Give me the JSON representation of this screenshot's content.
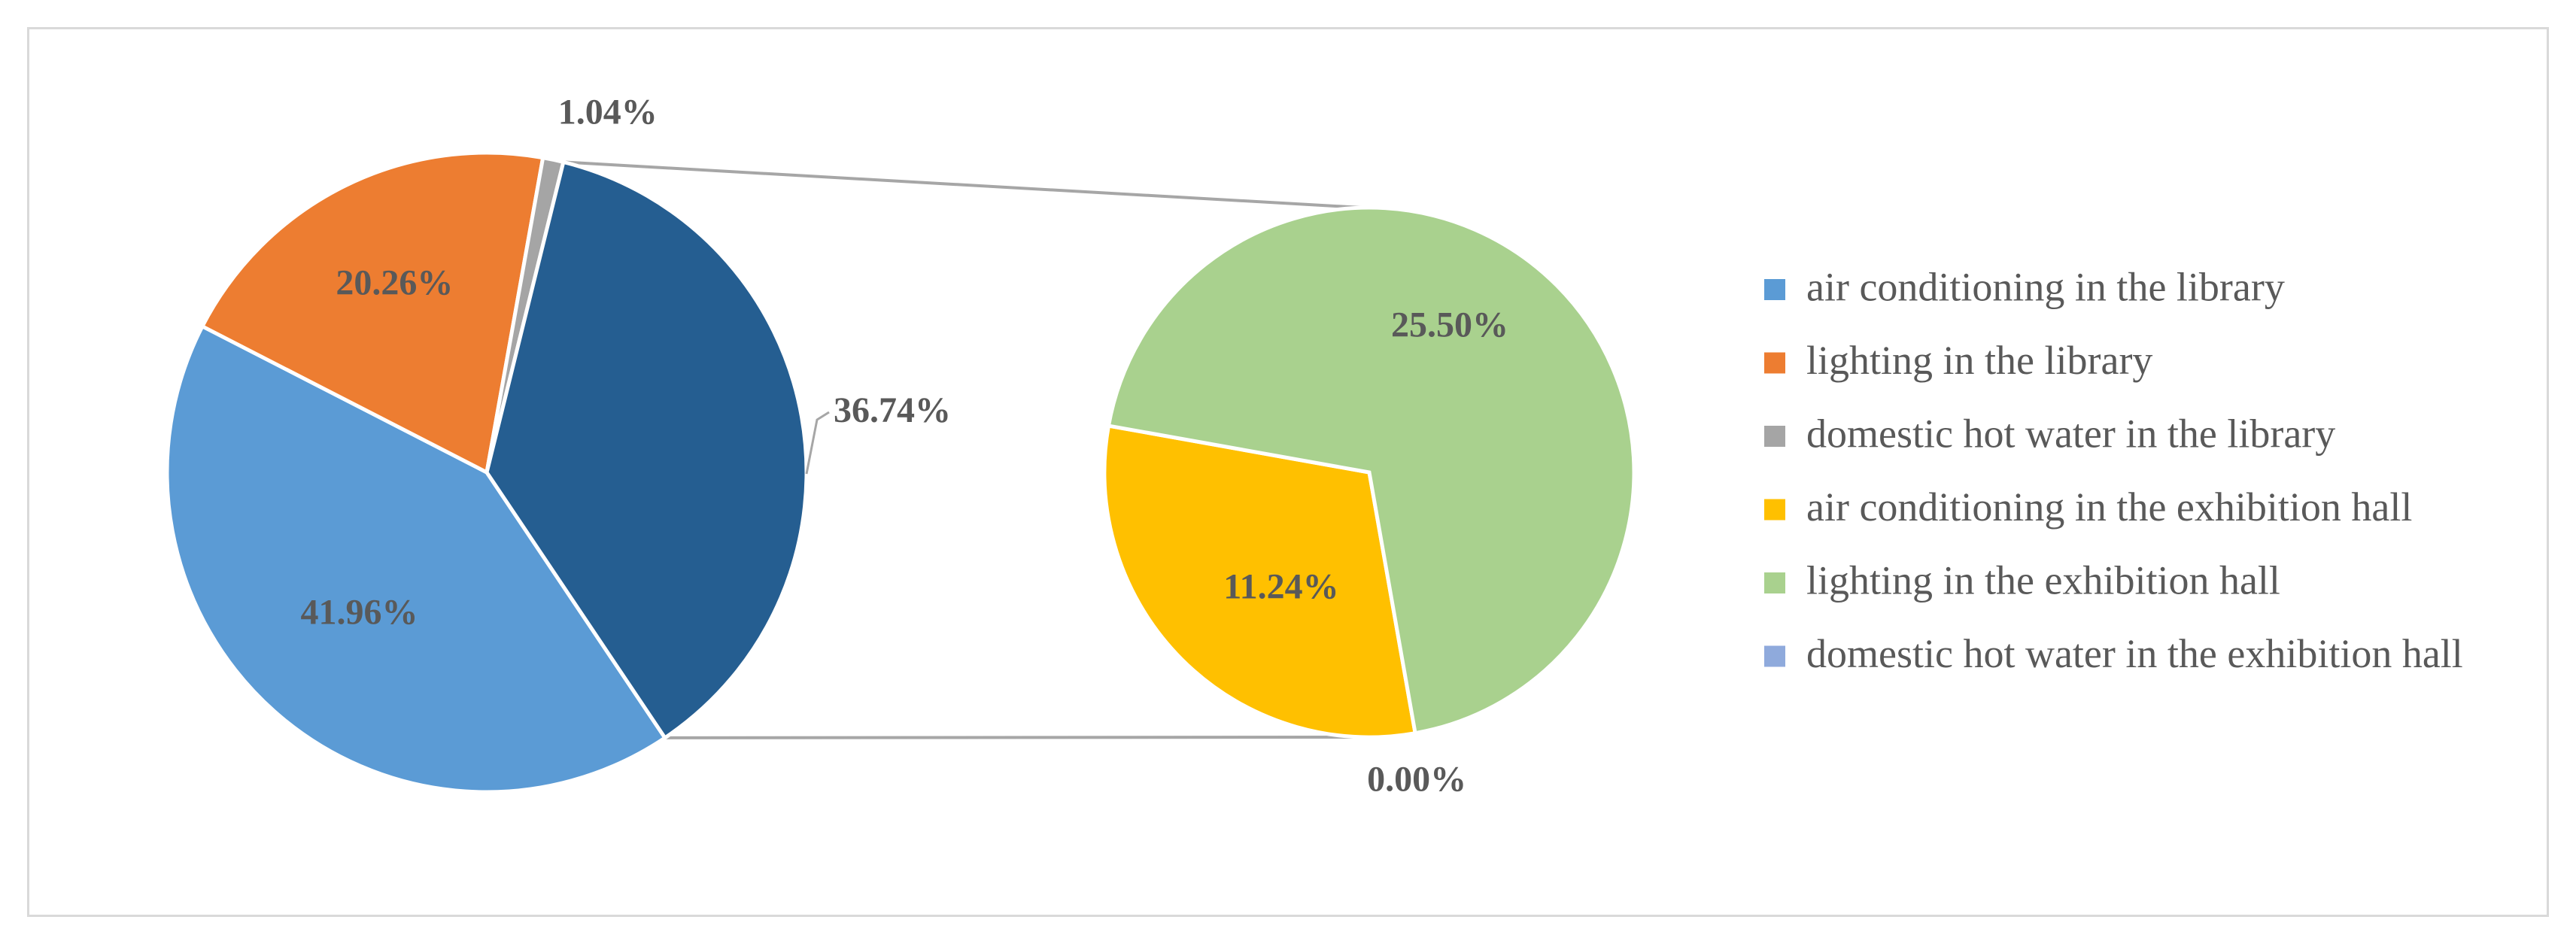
{
  "chart_data": {
    "type": "pie",
    "title": "",
    "series": [
      {
        "name": "air conditioning in the library",
        "value": 41.96,
        "label": "41.96%",
        "color": "#5b9bd5"
      },
      {
        "name": "lighting in the library",
        "value": 20.26,
        "label": "20.26%",
        "color": "#ed7d31"
      },
      {
        "name": "domestic hot water in the library",
        "value": 1.04,
        "label": "1.04%",
        "color": "#a5a5a5"
      },
      {
        "name": "air conditioning in the exhibition hall",
        "value": 11.24,
        "label": "11.24%",
        "color": "#ffc000"
      },
      {
        "name": "lighting in the exhibition hall",
        "value": 25.5,
        "label": "25.50%",
        "color": "#a9d18e"
      },
      {
        "name": "domestic hot water in the exhibition hall",
        "value": 0.0,
        "label": "0.00%",
        "color": "#8faadc"
      }
    ],
    "main_pie": {
      "slices": [
        {
          "ref": 0
        },
        {
          "ref": 1
        },
        {
          "ref": 2
        },
        {
          "aggregate_of": [
            3,
            4,
            5
          ],
          "value": 36.74,
          "label": "36.74%",
          "color": "#255e91"
        }
      ]
    },
    "secondary_pie": {
      "slices": [
        {
          "ref": 3
        },
        {
          "ref": 4
        },
        {
          "ref": 5
        }
      ]
    },
    "legend_position": "right"
  }
}
